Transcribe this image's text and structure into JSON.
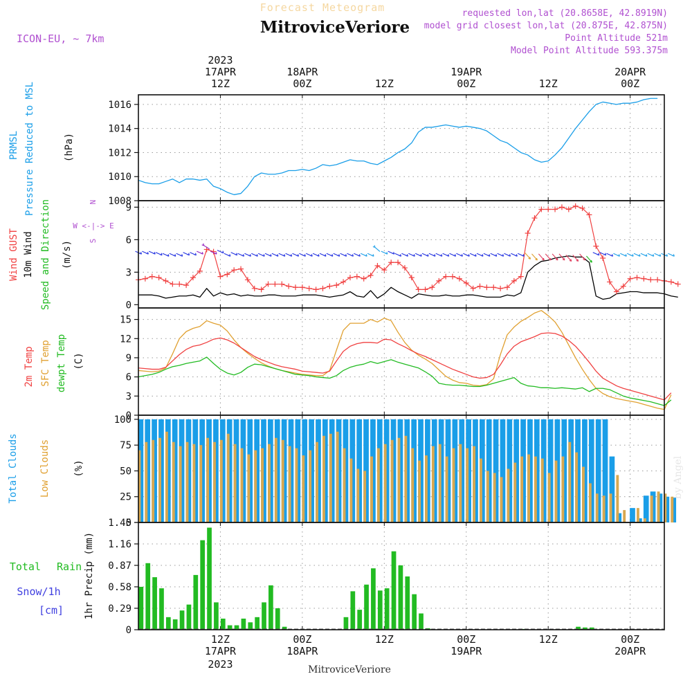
{
  "header": {
    "title": "Forecast Meteogram",
    "station": "MitroviceVeriore",
    "model": "ICON-EU, ~ 7km",
    "requested": "requested lon,lat (20.8658E, 42.8919N)",
    "closest": "model grid closest lon,lat (20.875E, 42.875N)",
    "point_alt": "Point Altitude 521m",
    "model_alt": "Model Point Altitude 593.375m",
    "footer_station": "MitroviceVeriore",
    "watermark": "by Angel"
  },
  "colors": {
    "pressure": "#1a9ee8",
    "gust": "#f04040",
    "wind": "#000000",
    "dir": "#22bb22",
    "temp": "#f04040",
    "sfc": "#e0a030",
    "dew": "#22bb22",
    "total_cloud": "#1a9ee8",
    "low_cloud": "#d8a850",
    "rain": "#22bb22",
    "snow": "#4040e0",
    "meta": "#b050d0"
  },
  "time_axis": {
    "top_labels": [
      {
        "h": 12,
        "l1": "2023",
        "l2": "17APR",
        "l3": "12Z"
      },
      {
        "h": 24,
        "l1": "",
        "l2": "18APR",
        "l3": "00Z"
      },
      {
        "h": 36,
        "l1": "",
        "l2": "",
        "l3": "12Z"
      },
      {
        "h": 48,
        "l1": "",
        "l2": "19APR",
        "l3": "00Z"
      },
      {
        "h": 60,
        "l1": "",
        "l2": "",
        "l3": "12Z"
      },
      {
        "h": 72,
        "l1": "",
        "l2": "20APR",
        "l3": "00Z"
      }
    ],
    "bottom_labels": [
      {
        "h": 12,
        "l1": "12Z",
        "l2": "17APR",
        "l3": "2023"
      },
      {
        "h": 24,
        "l1": "00Z",
        "l2": "18APR",
        "l3": ""
      },
      {
        "h": 36,
        "l1": "12Z",
        "l2": "",
        "l3": ""
      },
      {
        "h": 48,
        "l1": "00Z",
        "l2": "19APR",
        "l3": ""
      },
      {
        "h": 60,
        "l1": "12Z",
        "l2": "",
        "l3": ""
      },
      {
        "h": 72,
        "l1": "00Z",
        "l2": "20APR",
        "l3": ""
      }
    ]
  },
  "chart_data": [
    {
      "id": "pressure",
      "type": "line",
      "ylabel": [
        "PRMSL",
        "Pressure Reduced to MSL",
        "(hPa)"
      ],
      "ylim": [
        1008,
        1016.8
      ],
      "yticks": [
        1008,
        1010,
        1012,
        1014,
        1016
      ],
      "x_range_hours": [
        0,
        77
      ],
      "series": [
        {
          "name": "PRMSL",
          "x": [
            0,
            1,
            2,
            3,
            4,
            5,
            6,
            7,
            8,
            9,
            10,
            11,
            12,
            13,
            14,
            15,
            16,
            17,
            18,
            19,
            20,
            21,
            22,
            23,
            24,
            25,
            26,
            27,
            28,
            29,
            30,
            31,
            32,
            33,
            34,
            35,
            36,
            37,
            38,
            39,
            40,
            41,
            42,
            43,
            44,
            45,
            46,
            47,
            48,
            49,
            50,
            51,
            52,
            53,
            54,
            55,
            56,
            57,
            58,
            59,
            60,
            61,
            62,
            63,
            64,
            65,
            66,
            67,
            68,
            69,
            70,
            71,
            72,
            73,
            74,
            75,
            76
          ],
          "values": [
            1009.7,
            1009.5,
            1009.4,
            1009.4,
            1009.6,
            1009.8,
            1009.5,
            1009.8,
            1009.8,
            1009.7,
            1009.8,
            1009.2,
            1009.0,
            1008.7,
            1008.5,
            1008.6,
            1009.2,
            1010.0,
            1010.3,
            1010.2,
            1010.2,
            1010.3,
            1010.5,
            1010.5,
            1010.6,
            1010.5,
            1010.7,
            1011.0,
            1010.9,
            1011.0,
            1011.2,
            1011.4,
            1011.3,
            1011.3,
            1011.1,
            1011.0,
            1011.3,
            1011.6,
            1012.0,
            1012.3,
            1012.8,
            1013.7,
            1014.1,
            1014.1,
            1014.2,
            1014.3,
            1014.2,
            1014.1,
            1014.2,
            1014.1,
            1014.0,
            1013.8,
            1013.4,
            1013.0,
            1012.8,
            1012.4,
            1012.0,
            1011.8,
            1011.4,
            1011.2,
            1011.3,
            1011.8,
            1012.4,
            1013.2,
            1014.0,
            1014.7,
            1015.4,
            1016.0,
            1016.2,
            1016.1,
            1016.0,
            1016.1,
            1016.1,
            1016.2,
            1016.4,
            1016.5,
            1016.5
          ]
        }
      ]
    },
    {
      "id": "wind",
      "type": "line",
      "ylabel": [
        "Wind GUST",
        "10m Wind",
        "Speed and Direction",
        "(m/s)"
      ],
      "compass": [
        "N",
        "W <-|-> E",
        "S"
      ],
      "ylim": [
        -0.3,
        9.6
      ],
      "yticks": [
        0,
        3,
        6,
        9
      ],
      "series": [
        {
          "name": "Wind GUST",
          "values": [
            2.3,
            2.4,
            2.6,
            2.5,
            2.2,
            1.9,
            1.9,
            1.8,
            2.5,
            3.1,
            5.1,
            4.9,
            2.6,
            2.8,
            3.2,
            3.3,
            2.3,
            1.5,
            1.4,
            1.9,
            1.9,
            1.9,
            1.7,
            1.6,
            1.6,
            1.5,
            1.4,
            1.5,
            1.7,
            1.8,
            2.1,
            2.5,
            2.6,
            2.4,
            2.7,
            3.6,
            3.2,
            3.9,
            3.9,
            3.4,
            2.5,
            1.4,
            1.4,
            1.6,
            2.2,
            2.6,
            2.6,
            2.4,
            2.0,
            1.5,
            1.7,
            1.6,
            1.6,
            1.5,
            1.6,
            2.2,
            2.6,
            6.6,
            8.0,
            8.8,
            8.8,
            8.8,
            9.0,
            8.8,
            9.1,
            8.9,
            8.3,
            5.4,
            4.3,
            2.1,
            1.2,
            1.7,
            2.4,
            2.5,
            2.4,
            2.3,
            2.3,
            2.2,
            2.1,
            1.9
          ]
        },
        {
          "name": "10m Wind",
          "values": [
            0.9,
            0.9,
            0.9,
            0.8,
            0.6,
            0.7,
            0.8,
            0.8,
            0.9,
            0.7,
            1.5,
            0.8,
            1.1,
            0.9,
            1.0,
            0.8,
            0.9,
            0.8,
            0.8,
            0.9,
            0.9,
            0.8,
            0.8,
            0.8,
            0.9,
            0.9,
            0.9,
            0.8,
            0.7,
            0.8,
            0.9,
            1.2,
            0.8,
            0.7,
            1.3,
            0.6,
            1.0,
            1.6,
            1.2,
            0.9,
            0.6,
            1.0,
            0.9,
            0.8,
            0.8,
            0.9,
            0.8,
            0.8,
            0.9,
            0.9,
            0.8,
            0.7,
            0.7,
            0.7,
            0.9,
            0.8,
            1.1,
            3.0,
            3.6,
            4.0,
            4.1,
            4.3,
            4.4,
            4.5,
            4.4,
            4.4,
            3.9,
            0.8,
            0.5,
            0.6,
            1.0,
            1.1,
            1.2,
            1.2,
            1.1,
            1.1,
            1.1,
            1.0,
            0.8,
            0.7
          ]
        },
        {
          "name": "Direction",
          "values": [
            4.8,
            4.8,
            4.8,
            4.7,
            4.6,
            4.6,
            4.6,
            4.7,
            4.7,
            4.8,
            5.3,
            4.8,
            4.9,
            4.6,
            4.7,
            4.6,
            4.6,
            4.6,
            4.6,
            4.6,
            4.6,
            4.6,
            4.6,
            4.6,
            4.6,
            4.6,
            4.6,
            4.6,
            4.6,
            4.6,
            4.6,
            4.6,
            4.6,
            4.6,
            4.6,
            5.1,
            4.8,
            4.8,
            4.6,
            4.6,
            4.6,
            4.6,
            4.6,
            4.6,
            4.6,
            4.6,
            4.6,
            4.6,
            4.6,
            4.6,
            4.6,
            4.6,
            4.6,
            4.6,
            4.6,
            4.6,
            4.6,
            4.5,
            4.4,
            4.4,
            4.4,
            4.4,
            4.4,
            4.3,
            4.3,
            4.4,
            4.2,
            4.7,
            4.7,
            4.6,
            4.6,
            4.6,
            4.6,
            4.6,
            4.6,
            4.6,
            4.6,
            4.6,
            4.6,
            4.6
          ]
        }
      ]
    },
    {
      "id": "temp",
      "type": "line",
      "ylabel": [
        "2m Temp",
        "SFC Temp",
        "dewpt Temp",
        "(C)"
      ],
      "ylim": [
        0,
        16.8
      ],
      "yticks": [
        0,
        3,
        6,
        9,
        12,
        15
      ],
      "series": [
        {
          "name": "2m Temp",
          "values": [
            7.4,
            7.3,
            7.2,
            7.2,
            7.5,
            8.5,
            9.5,
            10.3,
            10.8,
            11.0,
            11.4,
            11.9,
            12.1,
            11.8,
            11.3,
            10.6,
            9.9,
            9.2,
            8.7,
            8.3,
            7.9,
            7.6,
            7.4,
            7.2,
            6.9,
            6.8,
            6.7,
            6.6,
            6.9,
            8.5,
            10.0,
            10.8,
            11.2,
            11.4,
            11.4,
            11.3,
            11.9,
            11.8,
            11.2,
            10.7,
            10.1,
            9.6,
            9.2,
            8.7,
            8.2,
            7.7,
            7.2,
            6.8,
            6.4,
            6.0,
            5.8,
            5.9,
            6.4,
            7.9,
            9.6,
            10.8,
            11.5,
            11.9,
            12.3,
            12.8,
            12.9,
            12.8,
            12.4,
            11.7,
            10.8,
            9.6,
            8.3,
            6.9,
            5.8,
            5.2,
            4.6,
            4.2,
            3.9,
            3.6,
            3.3,
            3.0,
            2.7,
            2.4,
            3.5
          ]
        },
        {
          "name": "SFC Temp",
          "values": [
            7.0,
            6.9,
            6.8,
            6.9,
            7.4,
            9.6,
            12.0,
            13.1,
            13.6,
            13.9,
            14.8,
            14.4,
            14.1,
            13.2,
            11.8,
            10.6,
            9.7,
            8.9,
            8.2,
            7.7,
            7.3,
            7.0,
            6.8,
            6.6,
            6.4,
            6.3,
            6.2,
            6.2,
            7.0,
            10.2,
            13.3,
            14.4,
            14.4,
            14.4,
            15.0,
            14.6,
            15.2,
            14.8,
            13.0,
            11.4,
            10.2,
            9.4,
            8.8,
            8.1,
            7.1,
            6.1,
            5.5,
            5.1,
            5.0,
            4.7,
            4.6,
            4.8,
            5.7,
            9.5,
            12.6,
            13.8,
            14.7,
            15.3,
            16.0,
            16.4,
            15.6,
            14.6,
            13.0,
            11.0,
            9.0,
            7.2,
            5.6,
            4.2,
            3.4,
            2.9,
            2.6,
            2.4,
            2.2,
            2.0,
            1.7,
            1.4,
            1.1,
            0.9,
            3.2
          ]
        },
        {
          "name": "dewpt Temp",
          "values": [
            6.0,
            6.2,
            6.4,
            6.7,
            7.2,
            7.6,
            7.8,
            8.1,
            8.3,
            8.5,
            9.1,
            8.1,
            7.2,
            6.6,
            6.3,
            6.7,
            7.5,
            8.0,
            7.9,
            7.6,
            7.3,
            7.0,
            6.7,
            6.4,
            6.3,
            6.2,
            6.0,
            5.9,
            5.8,
            6.2,
            7.0,
            7.5,
            7.8,
            8.0,
            8.4,
            8.1,
            8.4,
            8.7,
            8.3,
            8.0,
            7.7,
            7.4,
            6.8,
            6.1,
            5.0,
            4.8,
            4.7,
            4.7,
            4.6,
            4.5,
            4.5,
            4.7,
            5.0,
            5.3,
            5.6,
            5.9,
            5.0,
            4.6,
            4.5,
            4.3,
            4.3,
            4.2,
            4.3,
            4.2,
            4.1,
            4.3,
            3.7,
            4.2,
            4.2,
            4.0,
            3.5,
            3.0,
            2.7,
            2.5,
            2.3,
            2.1,
            1.8,
            1.5,
            2.4
          ]
        }
      ]
    },
    {
      "id": "clouds",
      "type": "bar",
      "ylabel": [
        "Total Clouds",
        "Low Clouds",
        "(%)"
      ],
      "ylim": [
        0,
        104
      ],
      "yticks": [
        0,
        25,
        50,
        75,
        100
      ],
      "series": [
        {
          "name": "Total Clouds",
          "values": [
            100,
            100,
            100,
            100,
            100,
            100,
            100,
            100,
            100,
            100,
            100,
            100,
            100,
            100,
            100,
            100,
            100,
            100,
            100,
            100,
            100,
            100,
            100,
            100,
            100,
            100,
            100,
            100,
            100,
            100,
            100,
            100,
            100,
            100,
            100,
            100,
            100,
            100,
            100,
            100,
            100,
            100,
            100,
            100,
            100,
            100,
            100,
            100,
            100,
            100,
            100,
            100,
            100,
            100,
            100,
            100,
            100,
            100,
            100,
            100,
            100,
            100,
            100,
            100,
            100,
            100,
            100,
            100,
            100,
            64,
            9,
            0,
            14,
            4,
            26,
            30,
            28,
            25,
            24
          ]
        },
        {
          "name": "Low Clouds",
          "values": [
            70,
            78,
            80,
            82,
            88,
            78,
            74,
            78,
            76,
            75,
            82,
            78,
            80,
            86,
            76,
            72,
            66,
            70,
            72,
            76,
            82,
            80,
            74,
            72,
            65,
            70,
            78,
            84,
            86,
            88,
            72,
            62,
            52,
            50,
            64,
            72,
            76,
            80,
            82,
            84,
            72,
            60,
            65,
            74,
            76,
            64,
            72,
            76,
            72,
            74,
            62,
            50,
            48,
            44,
            52,
            58,
            64,
            66,
            64,
            62,
            48,
            60,
            64,
            78,
            68,
            54,
            38,
            28,
            26,
            28,
            46,
            12,
            0,
            14,
            4,
            26,
            30,
            28,
            25,
            24
          ]
        }
      ]
    },
    {
      "id": "precip",
      "type": "bar",
      "ylabel": [
        "Total Rain",
        "Snow/1h",
        "[cm]",
        "1hr Precip (mm)"
      ],
      "ylim": [
        0,
        1.45
      ],
      "yticks": [
        0,
        0.29,
        0.58,
        0.87,
        1.16,
        1.45
      ],
      "series": [
        {
          "name": "Total Rain",
          "values": [
            0.58,
            0.9,
            0.71,
            0.56,
            0.17,
            0.14,
            0.26,
            0.34,
            0.74,
            1.21,
            1.38,
            0.37,
            0.15,
            0.06,
            0.06,
            0.15,
            0.1,
            0.17,
            0.37,
            0.6,
            0.29,
            0.04,
            0.0,
            0.0,
            0.0,
            0.0,
            0.0,
            0.0,
            0.0,
            0.0,
            0.17,
            0.52,
            0.27,
            0.61,
            0.83,
            0.53,
            0.56,
            1.06,
            0.87,
            0.72,
            0.48,
            0.22,
            0.02,
            0.0,
            0.0,
            0.0,
            0.0,
            0.0,
            0.0,
            0.0,
            0.0,
            0.0,
            0.0,
            0.0,
            0.0,
            0.0,
            0.01,
            0.0,
            0.0,
            0.0,
            0.0,
            0.01,
            0.0,
            0.0,
            0.04,
            0.03,
            0.03,
            0.0,
            0.0,
            0.0,
            0.0,
            0.0,
            0.0,
            0.0,
            0.0,
            0.0,
            0.0,
            0.0,
            0.0
          ]
        }
      ]
    }
  ]
}
